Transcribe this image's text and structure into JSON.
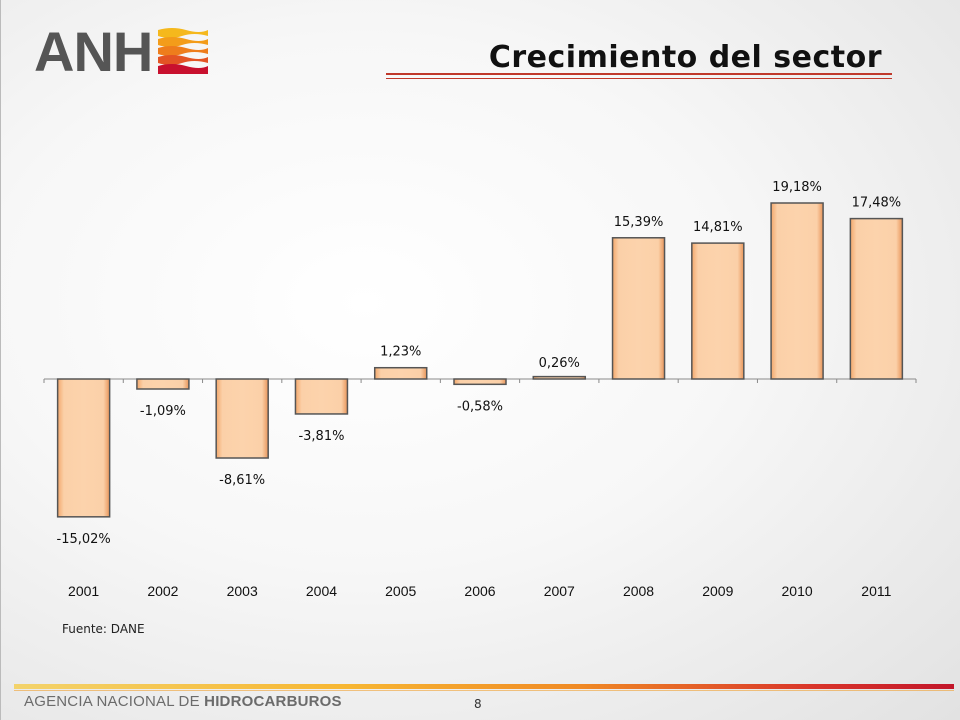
{
  "header": {
    "logo_text": "ANH",
    "title": "Crecimiento del sector"
  },
  "chart_data": {
    "type": "bar",
    "title": "",
    "xlabel": "",
    "ylabel": "",
    "categories": [
      "2001",
      "2002",
      "2003",
      "2004",
      "2005",
      "2006",
      "2007",
      "2008",
      "2009",
      "2010",
      "2011"
    ],
    "values": [
      -15.02,
      -1.09,
      -8.61,
      -3.81,
      1.23,
      -0.58,
      0.26,
      15.39,
      14.81,
      19.18,
      17.48
    ],
    "data_labels": [
      "-15,02%",
      "-1,09%",
      "-8,61%",
      "-3,81%",
      "1,23%",
      "-0,58%",
      "0,26%",
      "15,39%",
      "14,81%",
      "19,18%",
      "17,48%"
    ],
    "ylim": [
      -17,
      21
    ],
    "grid": false,
    "legend": "none",
    "bar_color": "#fbc89a",
    "bar_border": "#555555"
  },
  "source": "Fuente: DANE",
  "footer": {
    "org_prefix": "AGENCIA NACIONAL DE ",
    "org_bold": "HIDROCARBUROS",
    "page_number": "8"
  }
}
